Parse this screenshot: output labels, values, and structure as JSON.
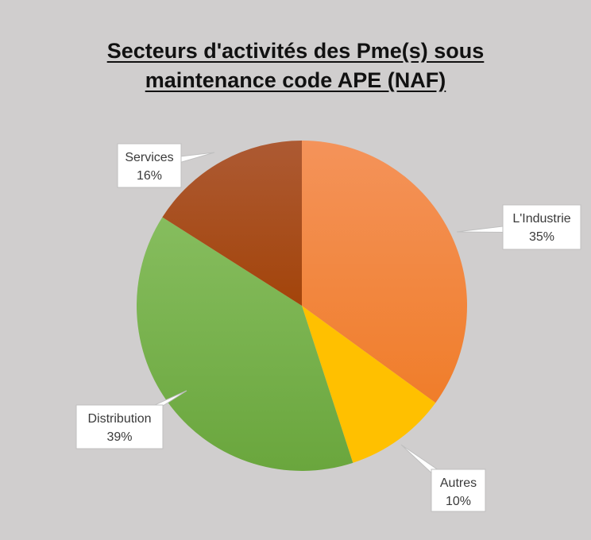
{
  "chart_data": {
    "type": "pie",
    "title_line1": "Secteurs d'activités des Pme(s) sous",
    "title_line2": "maintenance code APE (NAF)",
    "slices": [
      {
        "label": "L'Industrie",
        "value": 35,
        "display": "35%",
        "color": "#f07d2a",
        "color_light": "#f4935a"
      },
      {
        "label": "Autres",
        "value": 10,
        "display": "10%",
        "color": "#ffc000",
        "color_light": "#ffc000"
      },
      {
        "label": "Distribution",
        "value": 39,
        "display": "39%",
        "color": "#6aa63d",
        "color_light": "#86bd5e"
      },
      {
        "label": "Services",
        "value": 16,
        "display": "16%",
        "color": "#a3440a",
        "color_light": "#ad5a33"
      }
    ],
    "legend": "none",
    "data_labels": "callouts"
  }
}
